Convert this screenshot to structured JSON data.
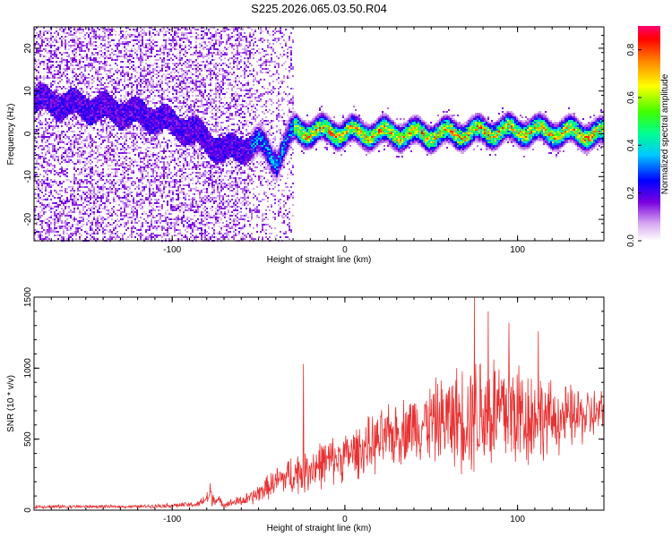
{
  "figure": {
    "title": "S225.2026.065.03.50.R04"
  },
  "colors": {
    "snr_line": "#e83232",
    "axis": "#000000",
    "background": "#ffffff"
  },
  "chart_data": [
    {
      "type": "heatmap",
      "name": "spectrogram",
      "title": "",
      "xlabel": "Height of straight line (km)",
      "ylabel": "Frequency (Hz)",
      "xlim": [
        -180,
        150
      ],
      "ylim": [
        -25,
        25
      ],
      "x_ticks": [
        -100,
        0,
        100
      ],
      "y_ticks": [
        -20,
        -10,
        0,
        10,
        20
      ],
      "description_of_signal": [
        {
          "x": -180,
          "f": 8
        },
        {
          "x": -160,
          "f": 7
        },
        {
          "x": -140,
          "f": 6
        },
        {
          "x": -110,
          "f": 4
        },
        {
          "x": -90,
          "f": 1
        },
        {
          "x": -70,
          "f": -4
        },
        {
          "x": -50,
          "f": -2
        },
        {
          "x": -40,
          "f": -6
        },
        {
          "x": -30,
          "f": 1
        },
        {
          "x": 0,
          "f": 0.5
        },
        {
          "x": 50,
          "f": 0
        },
        {
          "x": 100,
          "f": 1
        },
        {
          "x": 150,
          "f": 0
        }
      ],
      "colorbar": {
        "label": "Normalized spectral amplitude",
        "range": [
          0.0,
          0.9
        ],
        "ticks": [
          "0.0",
          "0.2",
          "0.4",
          "0.6",
          "0.8"
        ]
      }
    },
    {
      "type": "line",
      "name": "snr",
      "title": "",
      "xlabel": "Height of straight line (km)",
      "ylabel": "SNR (10 * v/v)",
      "xlim": [
        -180,
        150
      ],
      "ylim": [
        0,
        1500
      ],
      "x_ticks": [
        -100,
        0,
        100
      ],
      "y_ticks": [
        0,
        500,
        1000,
        1500
      ],
      "series": [
        {
          "name": "SNR",
          "envelope": [
            {
              "x": -180,
              "mean": 25,
              "amp": 15
            },
            {
              "x": -120,
              "mean": 25,
              "amp": 12
            },
            {
              "x": -85,
              "mean": 40,
              "amp": 25
            },
            {
              "x": -78,
              "mean": 100,
              "amp": 80
            },
            {
              "x": -70,
              "mean": 40,
              "amp": 25
            },
            {
              "x": -55,
              "mean": 80,
              "amp": 60
            },
            {
              "x": -40,
              "mean": 200,
              "amp": 120
            },
            {
              "x": -25,
              "mean": 280,
              "amp": 200
            },
            {
              "x": 0,
              "mean": 380,
              "amp": 200
            },
            {
              "x": 20,
              "mean": 480,
              "amp": 250
            },
            {
              "x": 40,
              "mean": 600,
              "amp": 280
            },
            {
              "x": 60,
              "mean": 640,
              "amp": 380
            },
            {
              "x": 80,
              "mean": 700,
              "amp": 550
            },
            {
              "x": 100,
              "mean": 680,
              "amp": 500
            },
            {
              "x": 120,
              "mean": 640,
              "amp": 300
            },
            {
              "x": 150,
              "mean": 680,
              "amp": 200
            }
          ],
          "peaks": [
            {
              "x": -78,
              "y": 190
            },
            {
              "x": -24,
              "y": 1030
            },
            {
              "x": 75,
              "y": 1500
            },
            {
              "x": 83,
              "y": 1400
            },
            {
              "x": 95,
              "y": 1320
            },
            {
              "x": 112,
              "y": 1260
            }
          ]
        }
      ]
    }
  ]
}
